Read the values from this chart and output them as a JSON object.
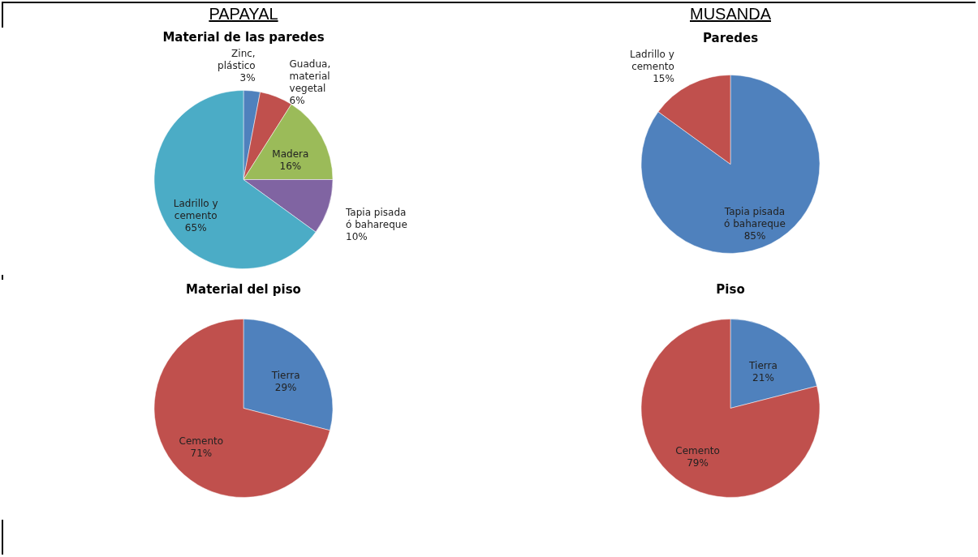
{
  "chart_data": [
    {
      "type": "pie",
      "title": "Material de las paredes",
      "annotations": [
        "PAPAYAL"
      ],
      "categories": [
        "Zinc, plástico",
        "Guadua, material vegetal",
        "Madera",
        "Tapia pisada ó bahareque",
        "Ladrillo y cemento"
      ],
      "values": [
        3,
        6,
        16,
        10,
        65
      ],
      "value_labels": [
        "3%",
        "6%",
        "16%",
        "10%",
        "65%"
      ],
      "colors": [
        "#4f81bd",
        "#c0504d",
        "#9bbb59",
        "#8064a2",
        "#4bacc6"
      ]
    },
    {
      "type": "pie",
      "title": "Paredes",
      "annotations": [
        "MUSANDA"
      ],
      "categories": [
        "Tapia pisada ó bahareque",
        "Ladrillo y cemento"
      ],
      "values": [
        85,
        15
      ],
      "value_labels": [
        "85%",
        "15%"
      ],
      "colors": [
        "#4f81bd",
        "#c0504d"
      ]
    },
    {
      "type": "pie",
      "title": "Material del piso",
      "categories": [
        "Tierra",
        "Cemento"
      ],
      "values": [
        29,
        71
      ],
      "value_labels": [
        "29%",
        "71%"
      ],
      "colors": [
        "#4f81bd",
        "#c0504d"
      ]
    },
    {
      "type": "pie",
      "title": "Piso",
      "categories": [
        "Tierra",
        "Cemento"
      ],
      "values": [
        21,
        79
      ],
      "value_labels": [
        "21%",
        "79%"
      ],
      "colors": [
        "#4f81bd",
        "#c0504d"
      ]
    }
  ]
}
